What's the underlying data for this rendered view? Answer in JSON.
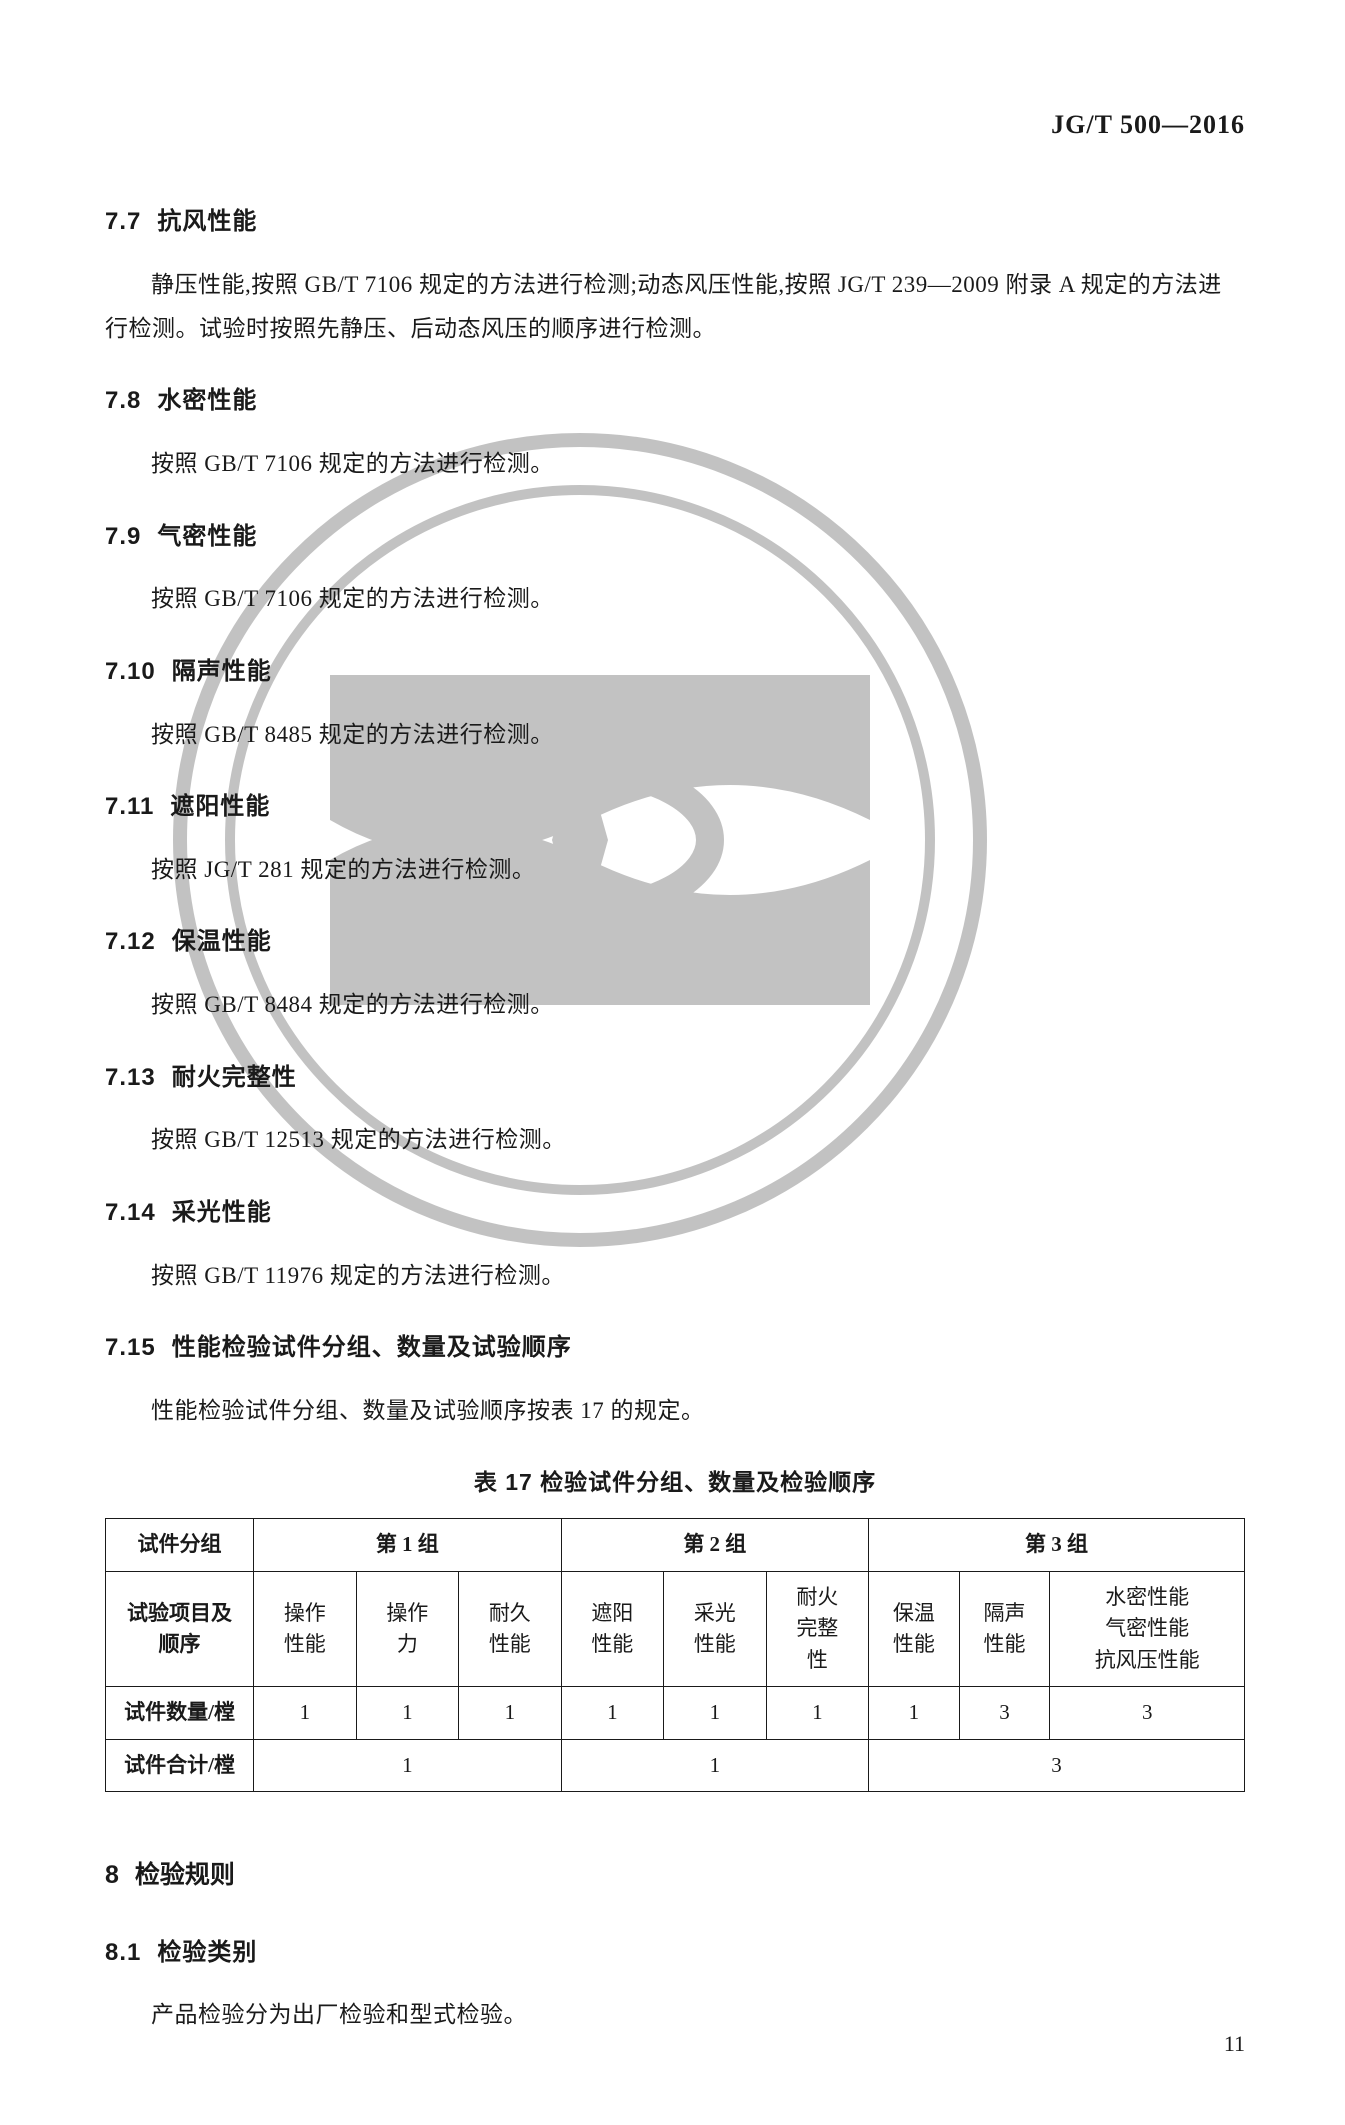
{
  "doc_code": "JG/T 500—2016",
  "sections": [
    {
      "num": "7.7",
      "title": "抗风性能",
      "body": "静压性能,按照 GB/T 7106 规定的方法进行检测;动态风压性能,按照 JG/T 239—2009 附录 A 规定的方法进行检测。试验时按照先静压、后动态风压的顺序进行检测。"
    },
    {
      "num": "7.8",
      "title": "水密性能",
      "body": "按照 GB/T 7106 规定的方法进行检测。"
    },
    {
      "num": "7.9",
      "title": "气密性能",
      "body": "按照 GB/T 7106 规定的方法进行检测。"
    },
    {
      "num": "7.10",
      "title": "隔声性能",
      "body": "按照 GB/T 8485 规定的方法进行检测。"
    },
    {
      "num": "7.11",
      "title": "遮阳性能",
      "body": "按照 JG/T 281 规定的方法进行检测。"
    },
    {
      "num": "7.12",
      "title": "保温性能",
      "body": "按照 GB/T 8484 规定的方法进行检测。"
    },
    {
      "num": "7.13",
      "title": "耐火完整性",
      "body": "按照 GB/T 12513 规定的方法进行检测。"
    },
    {
      "num": "7.14",
      "title": "采光性能",
      "body": "按照 GB/T 11976 规定的方法进行检测。"
    },
    {
      "num": "7.15",
      "title": "性能检验试件分组、数量及试验顺序",
      "body": "性能检验试件分组、数量及试验顺序按表 17 的规定。"
    }
  ],
  "table": {
    "caption": "表 17  检验试件分组、数量及检验顺序",
    "header_row1": {
      "c0": "试件分组",
      "c1": "第 1 组",
      "c2": "第 2 组",
      "c3": "第 3 组"
    },
    "row_items_label": "试验项目及\n顺序",
    "items": [
      "操作\n性能",
      "操作\n力",
      "耐久\n性能",
      "遮阳\n性能",
      "采光\n性能",
      "耐火\n完整\n性",
      "保温\n性能",
      "隔声\n性能",
      "水密性能\n气密性能\n抗风压性能"
    ],
    "row_qty_label": "试件数量/樘",
    "qty": [
      "1",
      "1",
      "1",
      "1",
      "1",
      "1",
      "1",
      "3",
      "3"
    ],
    "row_total_label": "试件合计/樘",
    "totals": [
      "1",
      "1",
      "3"
    ]
  },
  "chapter8": {
    "num": "8",
    "title": "检验规则",
    "sub": {
      "num": "8.1",
      "title": "检验类别",
      "body": "产品检验分为出厂检验和型式检验。"
    }
  },
  "page_number": "11",
  "colors": {
    "text": "#1a1a1a",
    "watermark": "#7a7a7a",
    "background": "#ffffff",
    "border": "#1a1a1a"
  }
}
